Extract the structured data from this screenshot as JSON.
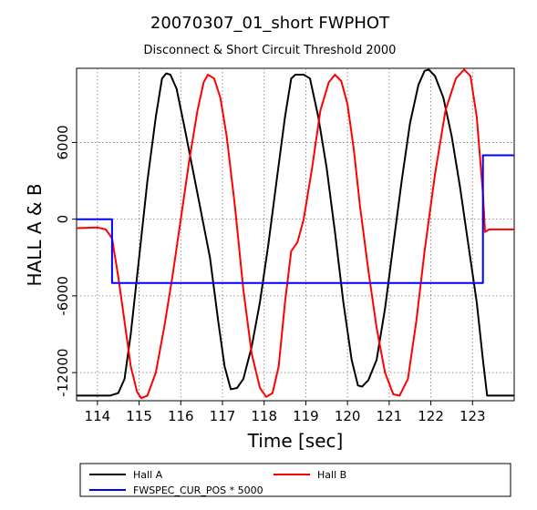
{
  "chart_data": {
    "type": "line",
    "title": "20070307_01_short FWPHOT",
    "subtitle": "Disconnect & Short Circuit Threshold 2000",
    "xlabel": "Time [sec]",
    "ylabel": "HALL A & B",
    "xlim": [
      113.5,
      124.0
    ],
    "ylim": [
      -14200,
      11800
    ],
    "x_ticks": [
      114,
      115,
      116,
      117,
      118,
      119,
      120,
      121,
      122,
      123
    ],
    "y_ticks": [
      -12000,
      -6000,
      0,
      6000
    ],
    "grid": true,
    "legend_position": "bottom",
    "series": [
      {
        "name": "Hall A",
        "color": "#000000",
        "points": [
          [
            113.5,
            -13800
          ],
          [
            114.0,
            -13800
          ],
          [
            114.3,
            -13800
          ],
          [
            114.5,
            -13600
          ],
          [
            114.65,
            -12500
          ],
          [
            114.8,
            -9000
          ],
          [
            115.0,
            -3000
          ],
          [
            115.2,
            3000
          ],
          [
            115.4,
            8000
          ],
          [
            115.55,
            11000
          ],
          [
            115.65,
            11400
          ],
          [
            115.75,
            11300
          ],
          [
            115.9,
            10200
          ],
          [
            116.1,
            7000
          ],
          [
            116.4,
            2000
          ],
          [
            116.7,
            -3000
          ],
          [
            116.9,
            -8000
          ],
          [
            117.05,
            -11500
          ],
          [
            117.2,
            -13300
          ],
          [
            117.35,
            -13200
          ],
          [
            117.5,
            -12500
          ],
          [
            117.7,
            -10000
          ],
          [
            117.9,
            -6500
          ],
          [
            118.1,
            -2000
          ],
          [
            118.3,
            3000
          ],
          [
            118.5,
            8000
          ],
          [
            118.65,
            11000
          ],
          [
            118.75,
            11300
          ],
          [
            118.95,
            11300
          ],
          [
            119.1,
            11000
          ],
          [
            119.3,
            8000
          ],
          [
            119.5,
            4000
          ],
          [
            119.7,
            -1000
          ],
          [
            119.9,
            -6500
          ],
          [
            120.1,
            -11000
          ],
          [
            120.25,
            -13000
          ],
          [
            120.35,
            -13100
          ],
          [
            120.5,
            -12600
          ],
          [
            120.7,
            -11000
          ],
          [
            120.9,
            -7000
          ],
          [
            121.1,
            -2000
          ],
          [
            121.3,
            3000
          ],
          [
            121.5,
            7500
          ],
          [
            121.7,
            10500
          ],
          [
            121.85,
            11600
          ],
          [
            121.95,
            11700
          ],
          [
            122.1,
            11200
          ],
          [
            122.3,
            9500
          ],
          [
            122.5,
            6500
          ],
          [
            122.7,
            2500
          ],
          [
            122.9,
            -2000
          ],
          [
            123.1,
            -6500
          ],
          [
            123.25,
            -11000
          ],
          [
            123.35,
            -13800
          ],
          [
            124.0,
            -13800
          ]
        ]
      },
      {
        "name": "Hall B",
        "color": "#ff0000",
        "points": [
          [
            113.5,
            -700
          ],
          [
            114.0,
            -650
          ],
          [
            114.2,
            -800
          ],
          [
            114.35,
            -1500
          ],
          [
            114.5,
            -4500
          ],
          [
            114.65,
            -8000
          ],
          [
            114.8,
            -11500
          ],
          [
            114.95,
            -13500
          ],
          [
            115.05,
            -14000
          ],
          [
            115.2,
            -13800
          ],
          [
            115.4,
            -12000
          ],
          [
            115.6,
            -8500
          ],
          [
            115.8,
            -4500
          ],
          [
            116.0,
            0
          ],
          [
            116.2,
            4500
          ],
          [
            116.4,
            8500
          ],
          [
            116.55,
            10700
          ],
          [
            116.65,
            11300
          ],
          [
            116.8,
            11000
          ],
          [
            116.95,
            9500
          ],
          [
            117.1,
            6500
          ],
          [
            117.3,
            1000
          ],
          [
            117.5,
            -5500
          ],
          [
            117.7,
            -10500
          ],
          [
            117.9,
            -13200
          ],
          [
            118.05,
            -13900
          ],
          [
            118.2,
            -13600
          ],
          [
            118.35,
            -11500
          ],
          [
            118.5,
            -6500
          ],
          [
            118.65,
            -2500
          ],
          [
            118.8,
            -1800
          ],
          [
            118.95,
            0
          ],
          [
            119.15,
            4000
          ],
          [
            119.35,
            8500
          ],
          [
            119.55,
            10700
          ],
          [
            119.7,
            11300
          ],
          [
            119.85,
            10800
          ],
          [
            120.0,
            9000
          ],
          [
            120.15,
            5500
          ],
          [
            120.3,
            1000
          ],
          [
            120.5,
            -4000
          ],
          [
            120.7,
            -8500
          ],
          [
            120.9,
            -12000
          ],
          [
            121.1,
            -13700
          ],
          [
            121.25,
            -13800
          ],
          [
            121.45,
            -12500
          ],
          [
            121.65,
            -8000
          ],
          [
            121.85,
            -2500
          ],
          [
            122.1,
            3500
          ],
          [
            122.35,
            8500
          ],
          [
            122.6,
            11000
          ],
          [
            122.8,
            11700
          ],
          [
            122.95,
            11200
          ],
          [
            123.1,
            8000
          ],
          [
            123.25,
            2000
          ],
          [
            123.3,
            -1000
          ],
          [
            123.4,
            -800
          ],
          [
            123.6,
            -800
          ],
          [
            124.0,
            -800
          ]
        ]
      },
      {
        "name": "FWSPEC_CUR_POS * 5000",
        "color": "#0000ff",
        "points": [
          [
            113.5,
            0
          ],
          [
            114.35,
            0
          ],
          [
            114.35,
            -5000
          ],
          [
            123.25,
            -5000
          ],
          [
            123.25,
            5000
          ],
          [
            124.0,
            5000
          ]
        ]
      }
    ]
  }
}
